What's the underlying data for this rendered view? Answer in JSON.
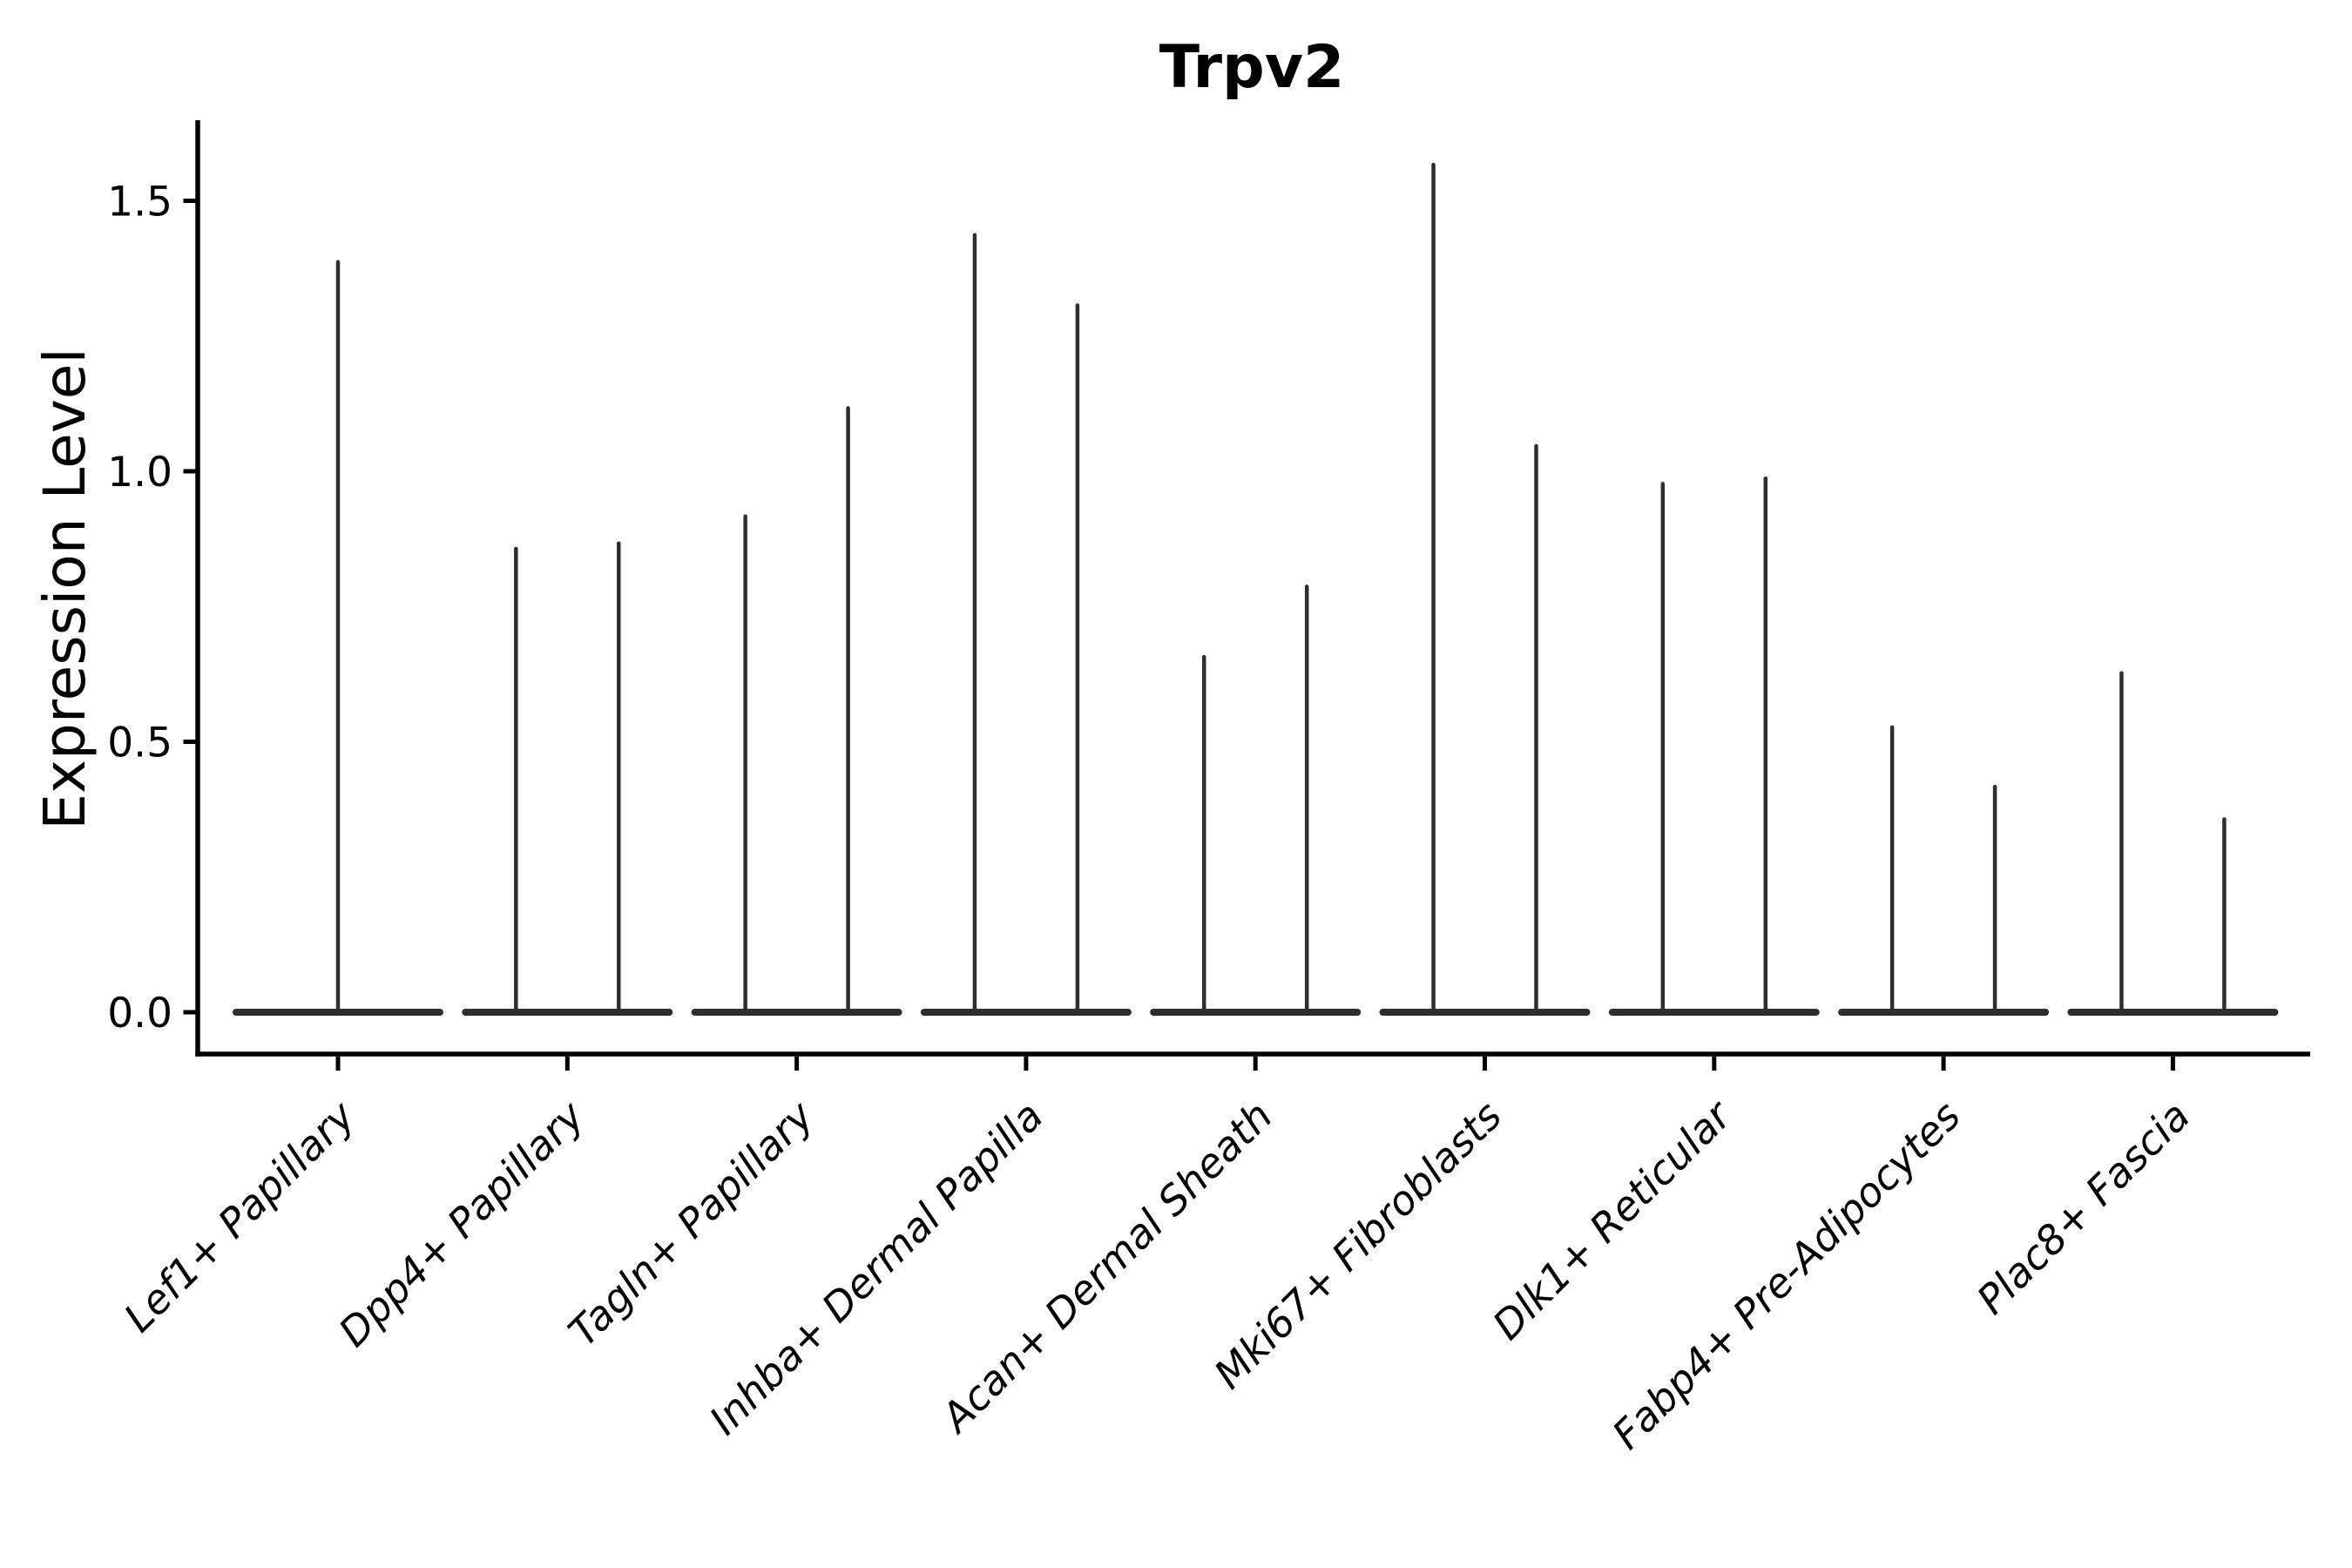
{
  "chart_data": {
    "type": "violin",
    "title": "Trpv2",
    "ylabel": "Expression Level",
    "xlabel": "",
    "grid": false,
    "legend": "none",
    "ylim": [
      -0.08,
      1.65
    ],
    "yticks": {
      "values": [
        0,
        0.5,
        1,
        1.5
      ],
      "labels": [
        "0.0",
        "0.5",
        "1.0",
        "1.5"
      ]
    },
    "categories": [
      "Lef1+ Papillary",
      "Dpp4+ Papillary",
      "Tagln+ Papillary",
      "Inhba+ Dermal Papilla",
      "Acan+ Dermal Sheath",
      "Mki67+ Fibroblasts",
      "Dlk1+ Reticular",
      "Fabp4+ Pre-Adipocytes",
      "Plac8+ Fascia"
    ],
    "violins": [
      {
        "category": "Lef1+ Papillary",
        "spikes": [
          {
            "offset": 0,
            "max": 1.39
          }
        ]
      },
      {
        "category": "Dpp4+ Papillary",
        "spikes": [
          {
            "offset": -0.224,
            "max": 0.86
          },
          {
            "offset": 0.224,
            "max": 0.87
          }
        ]
      },
      {
        "category": "Tagln+ Papillary",
        "spikes": [
          {
            "offset": -0.224,
            "max": 0.92
          },
          {
            "offset": 0.224,
            "max": 1.12
          }
        ]
      },
      {
        "category": "Inhba+ Dermal Papilla",
        "spikes": [
          {
            "offset": -0.224,
            "max": 1.44
          },
          {
            "offset": 0.224,
            "max": 1.31
          }
        ]
      },
      {
        "category": "Acan+ Dermal Sheath",
        "spikes": [
          {
            "offset": -0.224,
            "max": 0.66
          },
          {
            "offset": 0.224,
            "max": 0.79
          }
        ]
      },
      {
        "category": "Mki67+ Fibroblasts",
        "spikes": [
          {
            "offset": -0.224,
            "max": 1.57
          },
          {
            "offset": 0.224,
            "max": 1.05
          }
        ]
      },
      {
        "category": "Dlk1+ Reticular",
        "spikes": [
          {
            "offset": -0.224,
            "max": 0.98
          },
          {
            "offset": 0.224,
            "max": 0.99
          }
        ]
      },
      {
        "category": "Fabp4+ Pre-Adipocytes",
        "spikes": [
          {
            "offset": -0.224,
            "max": 0.53
          },
          {
            "offset": 0.224,
            "max": 0.42
          }
        ]
      },
      {
        "category": "Plac8+ Fascia",
        "spikes": [
          {
            "offset": -0.224,
            "max": 0.63
          },
          {
            "offset": 0.224,
            "max": 0.36
          }
        ]
      }
    ],
    "colors": {
      "violin": "#2e2e2e",
      "axis": "#000000",
      "text": "#000000",
      "background": "#ffffff"
    }
  }
}
